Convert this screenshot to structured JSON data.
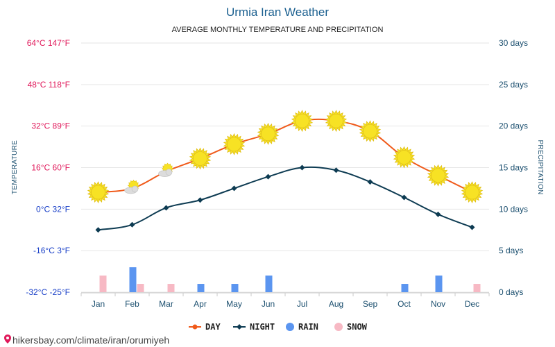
{
  "title": "Urmia Iran Weather",
  "subtitle": "AVERAGE MONTHLY TEMPERATURE AND PRECIPITATION",
  "source": "hikersbay.com/climate/iran/orumiyeh",
  "colors": {
    "day": "#f05a1a",
    "night": "#0d3b52",
    "rain": "#5b95f0",
    "snow": "#f7b9c4",
    "left_axis_warm": "#e0185a",
    "left_axis_cold": "#1a40c8",
    "right_axis": "#1a4e6e",
    "month_axis": "#1a4e6e",
    "sun": "#f7e224",
    "sun_stroke": "#e0c01a",
    "cloud": "#dcdcdc"
  },
  "chart_data": {
    "type": "line",
    "title": "Urmia Iran Weather",
    "subtitle": "AVERAGE MONTHLY TEMPERATURE AND PRECIPITATION",
    "categories": [
      "Jan",
      "Feb",
      "Mar",
      "Apr",
      "May",
      "Jun",
      "Jul",
      "Aug",
      "Sep",
      "Oct",
      "Nov",
      "Dec"
    ],
    "left_axis": {
      "label": "TEMPERATURE",
      "unit": "°C",
      "ylim": [
        -32,
        64
      ],
      "ticks": [
        {
          "value": 64,
          "label": "64°C 147°F"
        },
        {
          "value": 48,
          "label": "48°C 118°F"
        },
        {
          "value": 32,
          "label": "32°C 89°F"
        },
        {
          "value": 16,
          "label": "16°C 60°F"
        },
        {
          "value": 0,
          "label": "0°C 32°F"
        },
        {
          "value": -16,
          "label": "-16°C 3°F"
        },
        {
          "value": -32,
          "label": "-32°C -25°F"
        }
      ]
    },
    "right_axis": {
      "label": "PRECIPITATION",
      "unit": "days",
      "ylim": [
        0,
        30
      ],
      "ticks": [
        {
          "value": 30,
          "label": "30 days"
        },
        {
          "value": 25,
          "label": "25 days"
        },
        {
          "value": 20,
          "label": "20 days"
        },
        {
          "value": 15,
          "label": "15 days"
        },
        {
          "value": 10,
          "label": "10 days"
        },
        {
          "value": 5,
          "label": "5 days"
        },
        {
          "value": 0,
          "label": "0 days"
        }
      ]
    },
    "grid": true,
    "series": [
      {
        "name": "DAY",
        "kind": "line",
        "axis": "left",
        "values": [
          6.5,
          8,
          14.5,
          19.5,
          25,
          29,
          34,
          34,
          30,
          20,
          13,
          6.5
        ],
        "icons": [
          "sun",
          "sun-cloud",
          "sun-cloud",
          "sun",
          "sun",
          "sun",
          "sun",
          "sun",
          "sun",
          "sun",
          "sun",
          "sun"
        ]
      },
      {
        "name": "NIGHT",
        "kind": "line",
        "axis": "right_temp",
        "values": [
          -8,
          -6,
          0.5,
          3.5,
          8,
          12.5,
          16,
          15,
          10.5,
          4.5,
          -2,
          -7
        ]
      },
      {
        "name": "RAIN",
        "kind": "bar",
        "axis": "right",
        "values": [
          0,
          3,
          0,
          1,
          1,
          2,
          0,
          0,
          0,
          1,
          2,
          0
        ]
      },
      {
        "name": "SNOW",
        "kind": "bar",
        "axis": "right",
        "values": [
          2,
          1,
          1,
          0,
          0,
          0,
          0,
          0,
          0,
          0,
          0,
          1
        ]
      }
    ],
    "legend": {
      "position": "bottom",
      "items": [
        "DAY",
        "NIGHT",
        "RAIN",
        "SNOW"
      ]
    }
  }
}
